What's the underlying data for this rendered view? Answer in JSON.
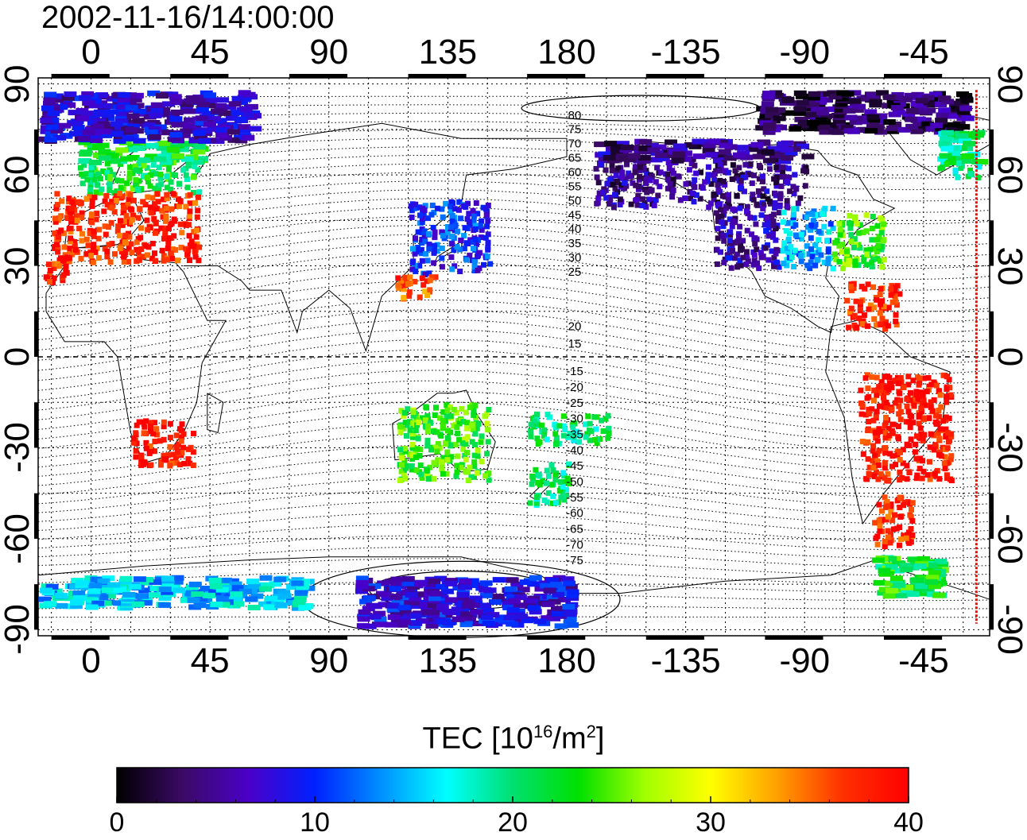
{
  "title": "2002-11-16/14:00:00",
  "axes": {
    "x_tick_labels": [
      "0",
      "45",
      "90",
      "135",
      "180",
      "-135",
      "-90",
      "-45"
    ],
    "y_tick_labels": [
      "90",
      "60",
      "30",
      "0",
      "-30",
      "-60",
      "-90"
    ],
    "x_range": [
      -20,
      340
    ],
    "y_range": [
      -92,
      92
    ],
    "grid": true
  },
  "contour_labels_north": [
    "80",
    "75",
    "70",
    "65",
    "60",
    "55",
    "50",
    "45",
    "40",
    "35",
    "30",
    "25",
    "20",
    "15"
  ],
  "contour_labels_south": [
    "-15",
    "-20",
    "-25",
    "-30",
    "-35",
    "-40",
    "-45",
    "-50",
    "-55",
    "-60",
    "-65",
    "-70",
    "-75"
  ],
  "colorbar": {
    "title_main": "TEC  [10",
    "title_sup1": "16",
    "title_mid": "/m",
    "title_sup2": "2",
    "title_end": "]",
    "min": 0,
    "max": 40,
    "tick_labels": [
      "0",
      "10",
      "20",
      "30",
      "40"
    ],
    "colors": [
      "#000000",
      "#3b0a66",
      "#4a00c8",
      "#0020ff",
      "#0090ff",
      "#00ffff",
      "#00e070",
      "#00e000",
      "#a0ff00",
      "#ffff00",
      "#ffa000",
      "#ff3000",
      "#ff0000"
    ]
  },
  "terminator_color": "#ff0000",
  "tec_regions": [
    {
      "name": "europe-north",
      "lon": [
        -5,
        40
      ],
      "lat": [
        55,
        72
      ],
      "tec": 22
    },
    {
      "name": "europe-south",
      "lon": [
        -15,
        40
      ],
      "lat": [
        32,
        55
      ],
      "tec": 38
    },
    {
      "name": "north-africa",
      "lon": [
        -18,
        -10
      ],
      "lat": [
        25,
        32
      ],
      "tec": 38
    },
    {
      "name": "southern-africa",
      "lon": [
        15,
        38
      ],
      "lat": [
        -35,
        -20
      ],
      "tec": 39
    },
    {
      "name": "japan",
      "lon": [
        120,
        150
      ],
      "lat": [
        28,
        52
      ],
      "tec": 10
    },
    {
      "name": "east-asia-south",
      "lon": [
        115,
        130
      ],
      "lat": [
        20,
        28
      ],
      "tec": 36
    },
    {
      "name": "australia",
      "lon": [
        115,
        150
      ],
      "lat": [
        -40,
        -15
      ],
      "tec": 24
    },
    {
      "name": "new-zealand",
      "lon": [
        165,
        180
      ],
      "lat": [
        -48,
        -34
      ],
      "tec": 20
    },
    {
      "name": "pacific-islands",
      "lon": [
        165,
        195
      ],
      "lat": [
        -28,
        -18
      ],
      "tec": 20
    },
    {
      "name": "canada-alaska",
      "lon": [
        190,
        270
      ],
      "lat": [
        50,
        72
      ],
      "tec": 5
    },
    {
      "name": "usa-west",
      "lon": [
        235,
        260
      ],
      "lat": [
        30,
        50
      ],
      "tec": 6
    },
    {
      "name": "usa-central",
      "lon": [
        260,
        280
      ],
      "lat": [
        30,
        50
      ],
      "tec": 14
    },
    {
      "name": "usa-east",
      "lon": [
        280,
        300
      ],
      "lat": [
        30,
        48
      ],
      "tec": 24
    },
    {
      "name": "caribbean",
      "lon": [
        285,
        305
      ],
      "lat": [
        10,
        25
      ],
      "tec": 38
    },
    {
      "name": "south-america",
      "lon": [
        290,
        325
      ],
      "lat": [
        -40,
        -5
      ],
      "tec": 39
    },
    {
      "name": "patagonia",
      "lon": [
        295,
        310
      ],
      "lat": [
        -62,
        -45
      ],
      "tec": 38
    },
    {
      "name": "antarctic-peninsula",
      "lon": [
        295,
        320
      ],
      "lat": [
        -78,
        -65
      ],
      "tec": 22
    },
    {
      "name": "antarctica-west",
      "lon": [
        -20,
        80
      ],
      "lat": [
        -82,
        -72
      ],
      "tec": 15
    },
    {
      "name": "antarctica-east",
      "lon": [
        100,
        180
      ],
      "lat": [
        -88,
        -72
      ],
      "tec": 8
    },
    {
      "name": "arctic",
      "lon": [
        -20,
        60
      ],
      "lat": [
        72,
        88
      ],
      "tec": 7
    },
    {
      "name": "arctic-east",
      "lon": [
        250,
        330
      ],
      "lat": [
        75,
        88
      ],
      "tec": 3
    },
    {
      "name": "greenland-east",
      "lon": [
        320,
        335
      ],
      "lat": [
        60,
        75
      ],
      "tec": 20
    }
  ]
}
